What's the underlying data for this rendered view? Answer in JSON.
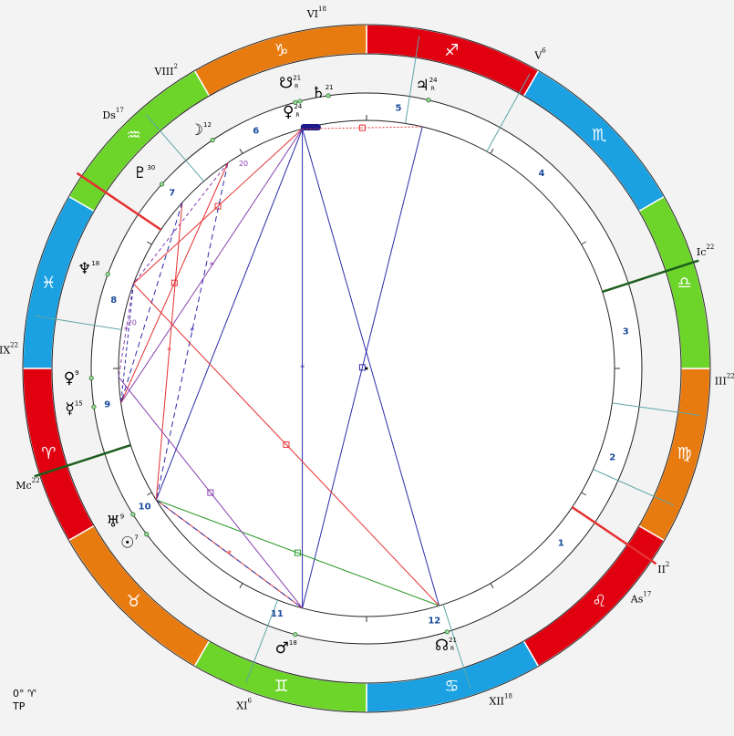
{
  "signs": [
    {
      "name": "cancer",
      "glyph": "♋",
      "color": "#1ba1e2"
    },
    {
      "name": "leo",
      "glyph": "♌",
      "color": "#e00010"
    },
    {
      "name": "virgo",
      "glyph": "♍",
      "color": "#e87b10"
    },
    {
      "name": "libra",
      "glyph": "♎",
      "color": "#6dd42a"
    },
    {
      "name": "scorpio",
      "glyph": "♏",
      "color": "#1ba1e2"
    },
    {
      "name": "sagittarius",
      "glyph": "♐",
      "color": "#e00010"
    },
    {
      "name": "capricorn",
      "glyph": "♑",
      "color": "#e87b10"
    },
    {
      "name": "aquarius",
      "glyph": "♒",
      "color": "#6dd42a"
    },
    {
      "name": "pisces",
      "glyph": "♓",
      "color": "#1ba1e2"
    },
    {
      "name": "aries",
      "glyph": "♈",
      "color": "#e00010"
    },
    {
      "name": "taurus",
      "glyph": "♉",
      "color": "#e87b10"
    },
    {
      "name": "gemini",
      "glyph": "♊",
      "color": "#6dd42a"
    }
  ],
  "angles": [
    {
      "id": "ds",
      "label": "Ds",
      "degree": "17"
    },
    {
      "id": "ic",
      "label": "Ic",
      "degree": "22"
    },
    {
      "id": "as",
      "label": "As",
      "degree": "17"
    },
    {
      "id": "mc",
      "label": "Mc",
      "degree": "22"
    }
  ],
  "house_cusps": [
    {
      "id": "v",
      "label": "V",
      "degree": "6"
    },
    {
      "id": "vi",
      "label": "VI",
      "degree": "18"
    },
    {
      "id": "viii",
      "label": "VIII",
      "degree": "2"
    },
    {
      "id": "ix",
      "label": "IX",
      "degree": "22"
    },
    {
      "id": "iii",
      "label": "III",
      "degree": "22"
    },
    {
      "id": "ii",
      "label": "II",
      "degree": "2"
    },
    {
      "id": "xi",
      "label": "XI",
      "degree": "6"
    },
    {
      "id": "xii",
      "label": "XII",
      "degree": "18"
    }
  ],
  "house_numbers": [
    "1",
    "2",
    "3",
    "4",
    "5",
    "6",
    "7",
    "8",
    "9",
    "10",
    "11",
    "12"
  ],
  "planets": [
    {
      "id": "node-south",
      "glyph": "☋",
      "degree": "21",
      "flag": "R"
    },
    {
      "id": "saturn",
      "glyph": "♄",
      "degree": "21",
      "flag": "R"
    },
    {
      "id": "venus-top",
      "glyph": "♀",
      "degree": "24",
      "flag": "R"
    },
    {
      "id": "jupiter",
      "glyph": "♃",
      "degree": "24",
      "flag": "R"
    },
    {
      "id": "moon",
      "glyph": "☽",
      "degree": "12",
      "flag": ""
    },
    {
      "id": "pluto",
      "glyph": "♇",
      "degree": "30",
      "flag": ""
    },
    {
      "id": "neptune",
      "glyph": "♆",
      "degree": "18",
      "flag": ""
    },
    {
      "id": "venus",
      "glyph": "♀",
      "degree": "9",
      "flag": ""
    },
    {
      "id": "mercury",
      "glyph": "☿",
      "degree": "15",
      "flag": ""
    },
    {
      "id": "uranus",
      "glyph": "♅",
      "degree": "9",
      "flag": ""
    },
    {
      "id": "sun",
      "glyph": "☉",
      "degree": "7",
      "flag": ""
    },
    {
      "id": "mars",
      "glyph": "♂",
      "degree": "18",
      "flag": ""
    },
    {
      "id": "node-north",
      "glyph": "☊",
      "degree": "21",
      "flag": "R"
    }
  ],
  "inner_marks": [
    "20",
    "20"
  ],
  "footer": {
    "line1": "0° ♈",
    "line2": "TP"
  },
  "colors": {
    "red": "#e63030",
    "blue": "#2b2ba8",
    "purple": "#8a3fb0",
    "green": "#2b9a2b",
    "dark_green": "#1d5e1d"
  }
}
